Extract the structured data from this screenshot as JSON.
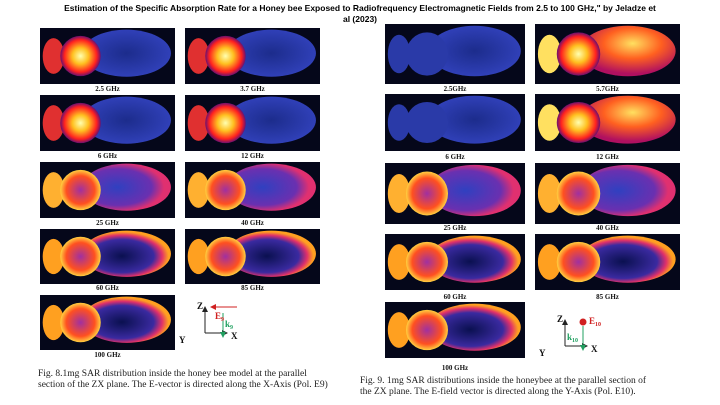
{
  "title": "Estimation of the Specific Absorption Rate for a Honey bee Exposed to Radiofrequency Electromagnetic Fields from 2.5 to 100 GHz,\" by Jeladze et al (2023)",
  "figures": [
    {
      "panels": [
        {
          "label": "2.5 GHz"
        },
        {
          "label": "3.7 GHz"
        },
        {
          "label": "6 GHz"
        },
        {
          "label": "12 GHz"
        },
        {
          "label": "25 GHz"
        },
        {
          "label": "40 GHz"
        },
        {
          "label": "60 GHz"
        },
        {
          "label": "85 GHz"
        },
        {
          "label": "100 GHz"
        }
      ],
      "axes": {
        "z": "Z",
        "x": "X",
        "y": "Y",
        "e": "E",
        "e_sub": "9",
        "k": "k",
        "k_sub": "9"
      },
      "caption": [
        "Fig. 8.1mg SAR distribution inside the honey bee model at the parallel",
        "section of the ZX plane. The E-vector is directed along the X-Axis (Pol. E9)"
      ]
    },
    {
      "panels": [
        {
          "label": "2.5GHz"
        },
        {
          "label": "5.7GHz"
        },
        {
          "label": "6 GHz"
        },
        {
          "label": "12 GHz"
        },
        {
          "label": "25 GHz"
        },
        {
          "label": "40 GHz"
        },
        {
          "label": "60 GHz"
        },
        {
          "label": "85 GHz"
        },
        {
          "label": "100 GHz"
        }
      ],
      "axes": {
        "z": "Z",
        "x": "X",
        "y": "Y",
        "e": "E",
        "e_sub": "10",
        "k": "k",
        "k_sub": "10"
      },
      "caption": [
        "Fig. 9. 1mg SAR distributions inside the honeybee at the parallel section of",
        "the ZX plane. The E-field vector is directed along the Y-Axis (Pol. E10)."
      ]
    }
  ]
}
